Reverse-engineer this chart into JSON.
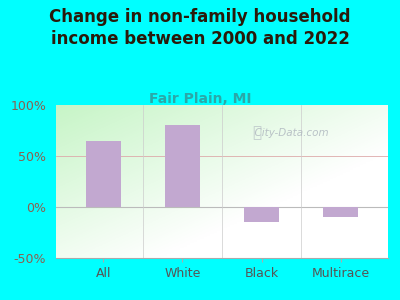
{
  "title": "Change in non-family household\nincome between 2000 and 2022",
  "subtitle": "Fair Plain, MI",
  "categories": [
    "All",
    "White",
    "Black",
    "Multirace"
  ],
  "values": [
    65,
    80,
    -15,
    -10
  ],
  "bar_color": "#c2a8d0",
  "title_color": "#2a1a0a",
  "subtitle_color": "#2aa8a8",
  "ytick_color": "#8b6050",
  "xtick_color": "#555555",
  "background_outer": "#00ffff",
  "background_inner": "#e8f5e8",
  "ylim": [
    -50,
    100
  ],
  "yticks": [
    -50,
    0,
    50,
    100
  ],
  "ytick_labels": [
    "-50%",
    "0%",
    "50%",
    "100%"
  ],
  "title_fontsize": 12,
  "subtitle_fontsize": 10,
  "tick_fontsize": 9,
  "watermark": "City-Data.com"
}
